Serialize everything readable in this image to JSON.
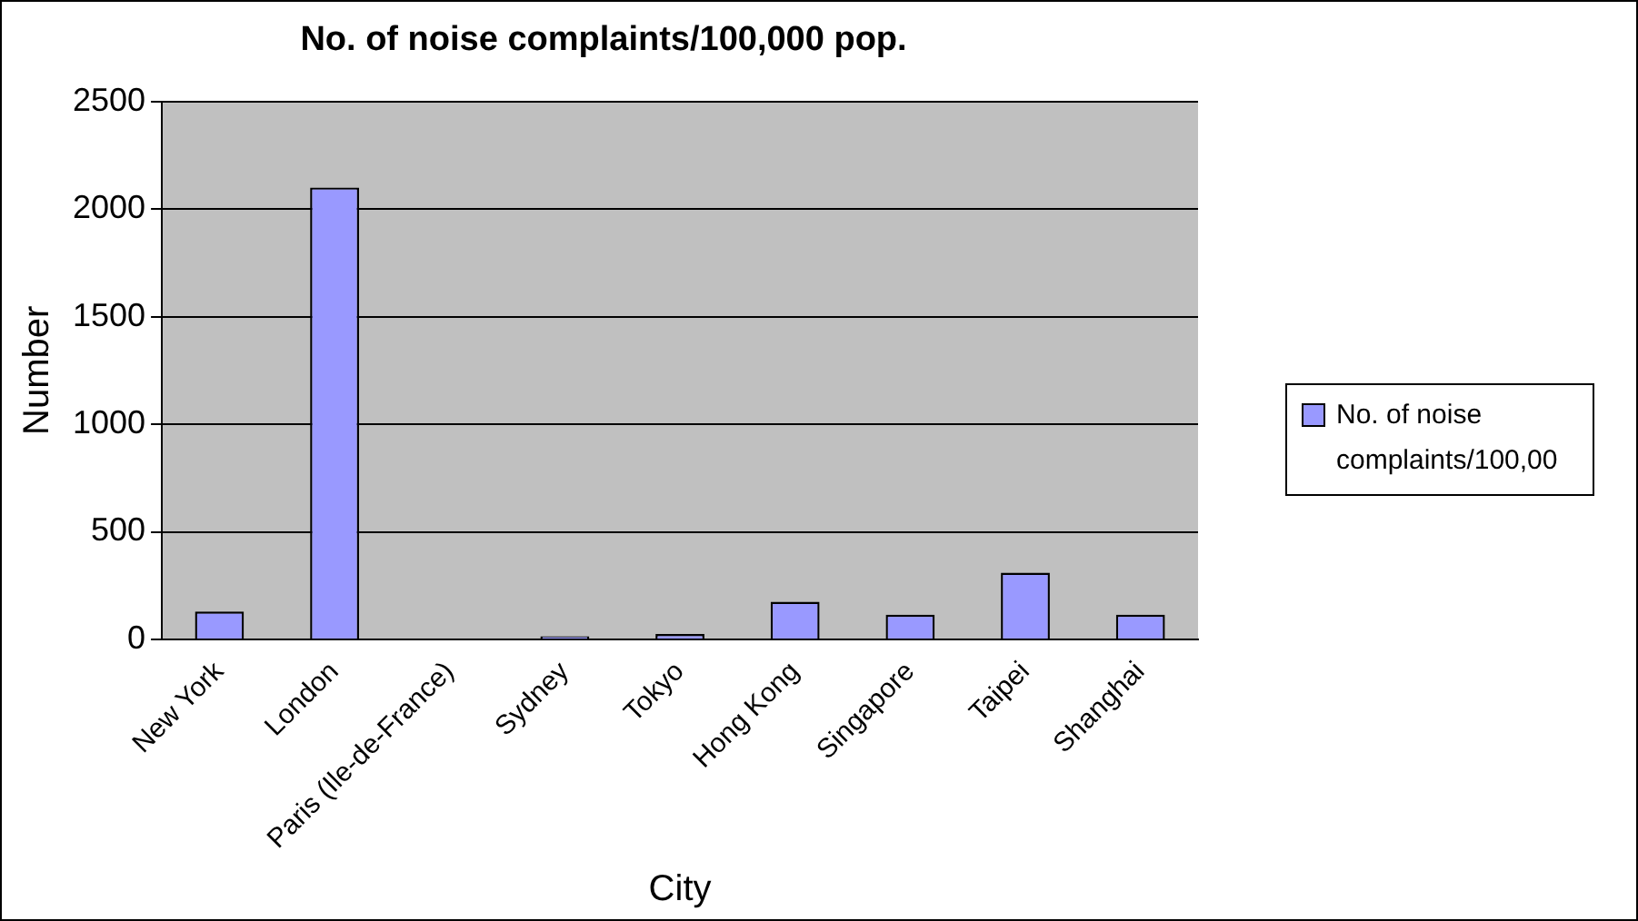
{
  "chart_data": {
    "type": "bar",
    "title": "No. of noise complaints/100,000 pop.",
    "xlabel": "City",
    "ylabel": "Number",
    "categories": [
      "New York",
      "London",
      "Paris (Ile-de-France)",
      "Sydney",
      "Tokyo",
      "Hong Kong",
      "Singapore",
      "Taipei",
      "Shanghai"
    ],
    "series": [
      {
        "name": "No. of noise complaints/100,00",
        "color": "#9999ff",
        "values": [
          130,
          2100,
          0,
          15,
          25,
          175,
          115,
          310,
          115
        ]
      }
    ],
    "ylim": [
      0,
      2500
    ],
    "yticks": [
      0,
      500,
      1000,
      1500,
      2000,
      2500
    ],
    "grid": "y",
    "legend": "right"
  }
}
